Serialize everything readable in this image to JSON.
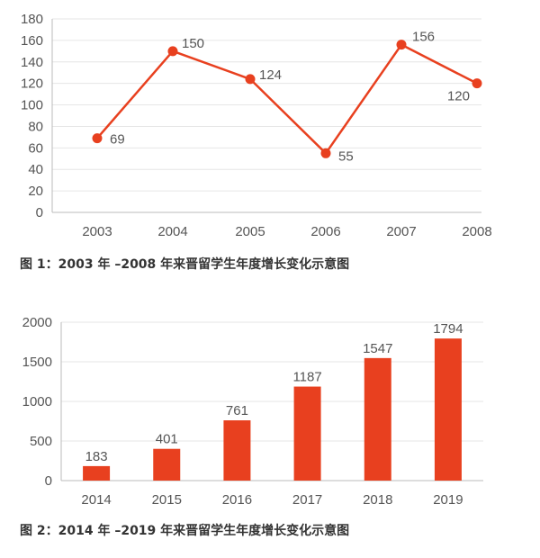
{
  "colors": {
    "accent": "#e8401f",
    "grid": "#e6e6e6",
    "axis": "#bbbbbb",
    "text": "#555555",
    "caption": "#333333"
  },
  "chart_data": [
    {
      "type": "line",
      "categories": [
        "2003",
        "2004",
        "2005",
        "2006",
        "2007",
        "2008"
      ],
      "values": [
        69,
        150,
        124,
        55,
        156,
        120
      ],
      "ylim": [
        0,
        180
      ],
      "yticks": [
        0,
        20,
        40,
        60,
        80,
        100,
        120,
        140,
        160,
        180
      ],
      "grid": true,
      "caption": "图 1：2003 年 –2008 年来晋留学生年度增长变化示意图"
    },
    {
      "type": "bar",
      "categories": [
        "2014",
        "2015",
        "2016",
        "2017",
        "2018",
        "2019"
      ],
      "values": [
        183,
        401,
        761,
        1187,
        1547,
        1794
      ],
      "ylim": [
        0,
        2000
      ],
      "yticks": [
        0,
        500,
        1000,
        1500,
        2000
      ],
      "grid": true,
      "caption": "图 2：2014 年 –2019 年来晋留学生年度增长变化示意图"
    }
  ]
}
